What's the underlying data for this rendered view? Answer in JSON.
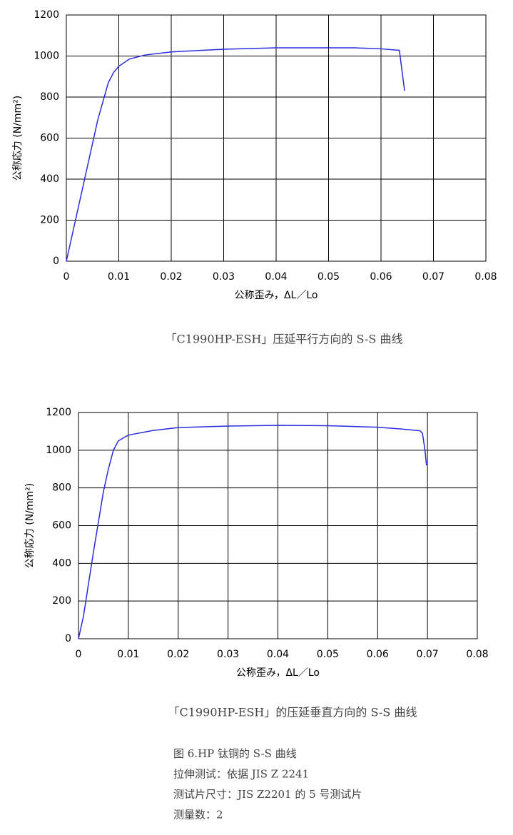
{
  "chart_data": [
    {
      "type": "line",
      "caption": "「C1990HP-ESH」压延平行方向的 S-S 曲线",
      "x_label": "公称歪み，ΔL／Lo",
      "y_label": "公称応力 (N/mm²)",
      "x": [
        0,
        0.002,
        0.004,
        0.006,
        0.008,
        0.009,
        0.01,
        0.012,
        0.015,
        0.02,
        0.03,
        0.04,
        0.05,
        0.055,
        0.06,
        0.0635,
        0.0645
      ],
      "series": [
        {
          "color": "#2b2bdd",
          "values": [
            0,
            230,
            460,
            690,
            870,
            920,
            950,
            985,
            1005,
            1020,
            1033,
            1040,
            1040,
            1040,
            1035,
            1028,
            830
          ]
        }
      ],
      "xlim": [
        0,
        0.08
      ],
      "xticks": [
        0,
        0.01,
        0.02,
        0.03,
        0.04,
        0.05,
        0.06,
        0.07,
        0.08
      ],
      "ylim": [
        0,
        1200
      ],
      "yticks": [
        0,
        200,
        400,
        600,
        800,
        1000,
        1200
      ],
      "grid": true
    },
    {
      "type": "line",
      "caption": "「C1990HP-ESH」的压延垂直方向的 S-S 曲线",
      "x_label": "公称歪み，ΔL／Lo",
      "y_label": "公称応力 (N/mm²)",
      "x": [
        0,
        0.001,
        0.002,
        0.003,
        0.004,
        0.005,
        0.006,
        0.007,
        0.008,
        0.01,
        0.015,
        0.02,
        0.03,
        0.04,
        0.05,
        0.06,
        0.065,
        0.0685,
        0.069,
        0.0695,
        0.0698
      ],
      "series": [
        {
          "color": "#2b2bdd",
          "values": [
            0,
            120,
            290,
            460,
            620,
            780,
            900,
            1000,
            1050,
            1080,
            1105,
            1120,
            1128,
            1132,
            1130,
            1122,
            1112,
            1103,
            1090,
            1000,
            920
          ]
        }
      ],
      "xlim": [
        0,
        0.08
      ],
      "xticks": [
        0,
        0.01,
        0.02,
        0.03,
        0.04,
        0.05,
        0.06,
        0.07,
        0.08
      ],
      "ylim": [
        0,
        1200
      ],
      "yticks": [
        0,
        200,
        400,
        600,
        800,
        1000,
        1200
      ],
      "grid": true
    }
  ],
  "notes": [
    "图 6.HP 钛铜的 S-S 曲线",
    "拉伸测试：依据 JIS Z 2241",
    "测试片尺寸：JIS Z2201 的 5 号测试片",
    "测量数：2"
  ]
}
